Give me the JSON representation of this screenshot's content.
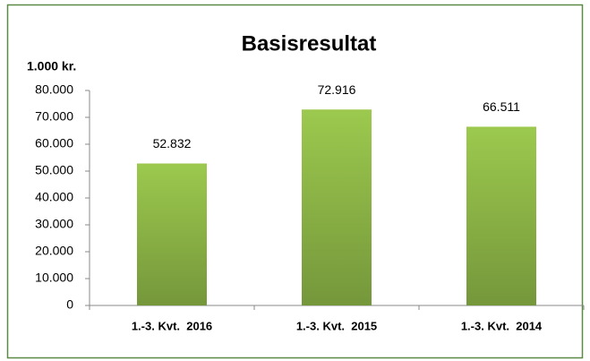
{
  "chart_data": {
    "type": "bar",
    "title": "Basisresultat",
    "y_label": "1.000 kr.",
    "categories": [
      "1.-3. Kvt.  2016",
      "1.-3. Kvt.  2015",
      "1.-3. Kvt.  2014"
    ],
    "values": [
      52832,
      72916,
      66511
    ],
    "value_labels": [
      "52.832",
      "72.916",
      "66.511"
    ],
    "color": "#9cc94e",
    "ylim": [
      0,
      80000
    ],
    "yticks": [
      0,
      {
        "value": 10000,
        "label": "10.000"
      },
      {
        "value": 20000,
        "label": "20.000"
      },
      {
        "value": 30000,
        "label": "30.000"
      },
      {
        "value": 40000,
        "label": "40.000"
      },
      {
        "value": 50000,
        "label": "50.000"
      },
      {
        "value": 60000,
        "label": "60.000"
      },
      {
        "value": 70000,
        "label": "70.000"
      },
      {
        "value": 80000,
        "label": "80.000"
      }
    ]
  }
}
